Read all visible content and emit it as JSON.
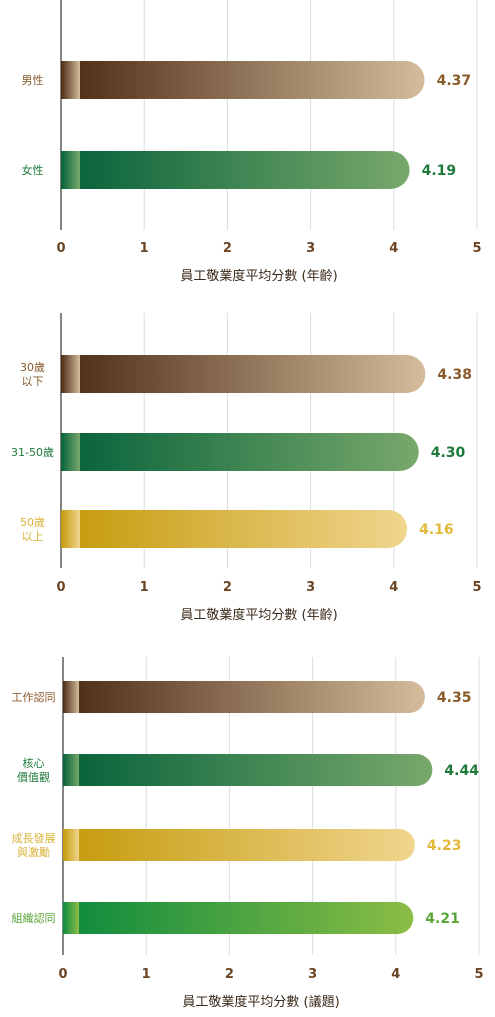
{
  "charts": [
    {
      "type": "bar",
      "orientation": "horizontal",
      "xlabel": "員工敬業度平均分數 (年齡)",
      "xlim": [
        0,
        5
      ],
      "ticks": [
        "0",
        "1",
        "2",
        "3",
        "4",
        "5"
      ],
      "grid": true,
      "series": [
        {
          "category": [
            "男性"
          ],
          "value": 4.37,
          "value_label": "4.37",
          "label_color": "#8a5a2b",
          "value_color": "#8a5a2b",
          "grad": [
            "#4a2a14",
            "#d4bc9c"
          ]
        },
        {
          "category": [
            "女性"
          ],
          "value": 4.19,
          "value_label": "4.19",
          "label_color": "#1e7a3a",
          "value_color": "#1e7a3a",
          "grad": [
            "#05613a",
            "#78a86b"
          ]
        }
      ]
    },
    {
      "type": "bar",
      "orientation": "horizontal",
      "xlabel": "員工敬業度平均分數 (年齡)",
      "xlim": [
        0,
        5
      ],
      "ticks": [
        "0",
        "1",
        "2",
        "3",
        "4",
        "5"
      ],
      "grid": true,
      "series": [
        {
          "category": [
            "30歲",
            "以下"
          ],
          "value": 4.38,
          "value_label": "4.38",
          "label_color": "#8a5a2b",
          "value_color": "#8a5a2b",
          "grad": [
            "#4a2a14",
            "#d4bc9c"
          ]
        },
        {
          "category": [
            "31-50歲"
          ],
          "value": 4.3,
          "value_label": "4.30",
          "label_color": "#1e7a3a",
          "value_color": "#1e7a3a",
          "grad": [
            "#05613a",
            "#78a86b"
          ]
        },
        {
          "category": [
            "50歲",
            "以上"
          ],
          "value": 4.16,
          "value_label": "4.16",
          "label_color": "#d9b43a",
          "value_color": "#e2b83c",
          "grad": [
            "#c49a0a",
            "#f0d58e"
          ]
        }
      ]
    },
    {
      "type": "bar",
      "orientation": "horizontal",
      "xlabel": "員工敬業度平均分數 (議題)",
      "xlim": [
        0,
        5
      ],
      "ticks": [
        "0",
        "1",
        "2",
        "3",
        "4",
        "5"
      ],
      "grid": true,
      "series": [
        {
          "category": [
            "工作認同"
          ],
          "value": 4.35,
          "value_label": "4.35",
          "label_color": "#8a5a2b",
          "value_color": "#8a5a2b",
          "grad": [
            "#4a2a14",
            "#d4bc9c"
          ]
        },
        {
          "category": [
            "核心",
            "價值觀"
          ],
          "value": 4.44,
          "value_label": "4.44",
          "label_color": "#1e7a3a",
          "value_color": "#1e7a3a",
          "grad": [
            "#05613a",
            "#78a86b"
          ]
        },
        {
          "category": [
            "成長發展",
            "與激勵"
          ],
          "value": 4.23,
          "value_label": "4.23",
          "label_color": "#d9b43a",
          "value_color": "#e2b83c",
          "grad": [
            "#c49a0a",
            "#f0d58e"
          ]
        },
        {
          "category": [
            "組織認同"
          ],
          "value": 4.21,
          "value_label": "4.21",
          "label_color": "#5aa63a",
          "value_color": "#5aa63a",
          "grad": [
            "#0b8a3d",
            "#8bbd45"
          ]
        }
      ]
    }
  ]
}
